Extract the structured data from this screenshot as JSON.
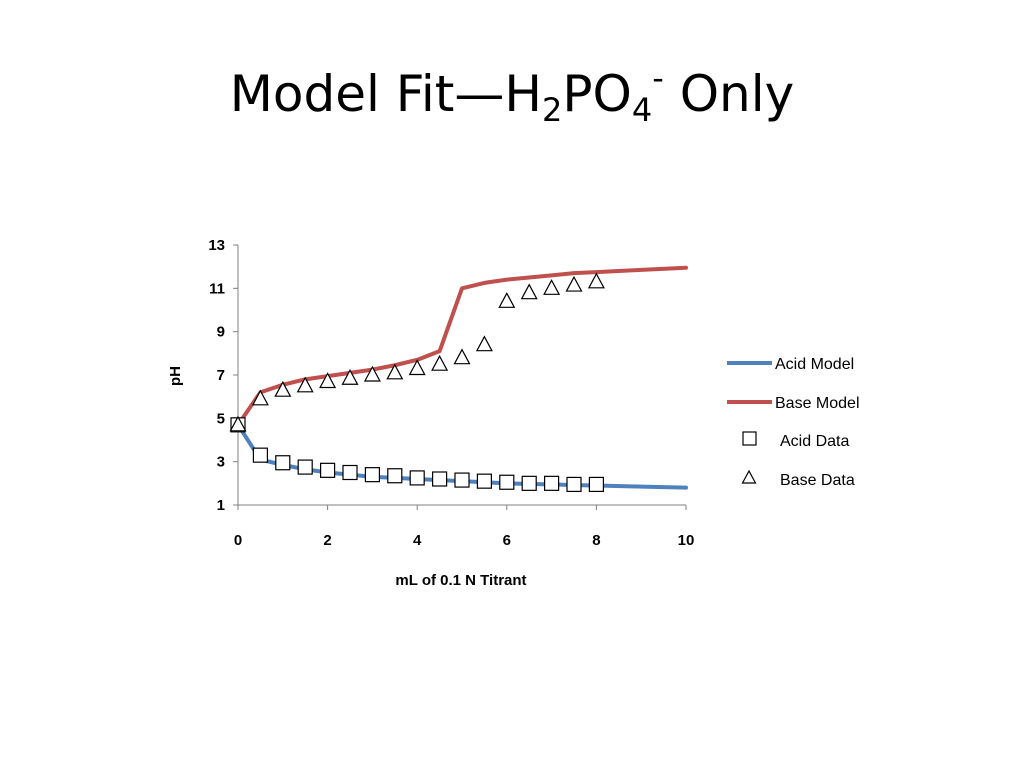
{
  "slide": {
    "title_main": "Model Fit—H",
    "title_sub1": "2",
    "title_mid": "PO",
    "title_sub2": "4",
    "title_sup": "-",
    "title_end": " Only"
  },
  "chart_data": {
    "type": "line",
    "title": "",
    "xlabel": "mL of 0.1 N Titrant",
    "ylabel": "pH",
    "xlim": [
      0,
      10
    ],
    "ylim": [
      1,
      13
    ],
    "xticks": [
      0,
      2,
      4,
      6,
      8,
      10
    ],
    "yticks": [
      1,
      3,
      5,
      7,
      9,
      11,
      13
    ],
    "grid": false,
    "legend_position": "right",
    "colors": {
      "acid_model": "#4f81bd",
      "base_model": "#c0504d",
      "markers": "#000000"
    },
    "series": [
      {
        "name": "Acid Model",
        "style": "line",
        "x": [
          0,
          0.5,
          1,
          1.5,
          2,
          2.5,
          3,
          3.5,
          4,
          4.5,
          5,
          5.5,
          6,
          6.5,
          7,
          7.5,
          8,
          9,
          10
        ],
        "y": [
          4.7,
          3.1,
          2.85,
          2.65,
          2.5,
          2.4,
          2.3,
          2.25,
          2.2,
          2.15,
          2.1,
          2.05,
          2.0,
          1.97,
          1.95,
          1.92,
          1.9,
          1.85,
          1.8
        ]
      },
      {
        "name": "Base Model",
        "style": "line",
        "x": [
          0,
          0.5,
          1,
          1.5,
          2,
          2.5,
          3,
          3.5,
          4,
          4.5,
          5,
          5.5,
          6,
          6.5,
          7,
          7.5,
          8,
          9,
          10
        ],
        "y": [
          4.7,
          6.2,
          6.55,
          6.8,
          6.95,
          7.1,
          7.25,
          7.45,
          7.7,
          8.1,
          11.0,
          11.25,
          11.4,
          11.5,
          11.6,
          11.7,
          11.75,
          11.85,
          11.95
        ]
      },
      {
        "name": "Acid Data",
        "style": "square",
        "x": [
          0,
          0.5,
          1,
          1.5,
          2,
          2.5,
          3,
          3.5,
          4,
          4.5,
          5,
          5.5,
          6,
          6.5,
          7,
          7.5,
          8
        ],
        "y": [
          4.7,
          3.3,
          2.95,
          2.75,
          2.6,
          2.5,
          2.4,
          2.35,
          2.25,
          2.2,
          2.15,
          2.1,
          2.05,
          2.0,
          2.0,
          1.95,
          1.95
        ]
      },
      {
        "name": "Base Data",
        "style": "triangle",
        "x": [
          0,
          0.5,
          1,
          1.5,
          2,
          2.5,
          3,
          3.5,
          4,
          4.5,
          5,
          5.5,
          6,
          6.5,
          7,
          7.5,
          8
        ],
        "y": [
          4.7,
          5.9,
          6.3,
          6.5,
          6.7,
          6.85,
          7.0,
          7.1,
          7.3,
          7.5,
          7.8,
          8.4,
          10.4,
          10.8,
          11.0,
          11.15,
          11.3
        ]
      }
    ]
  }
}
